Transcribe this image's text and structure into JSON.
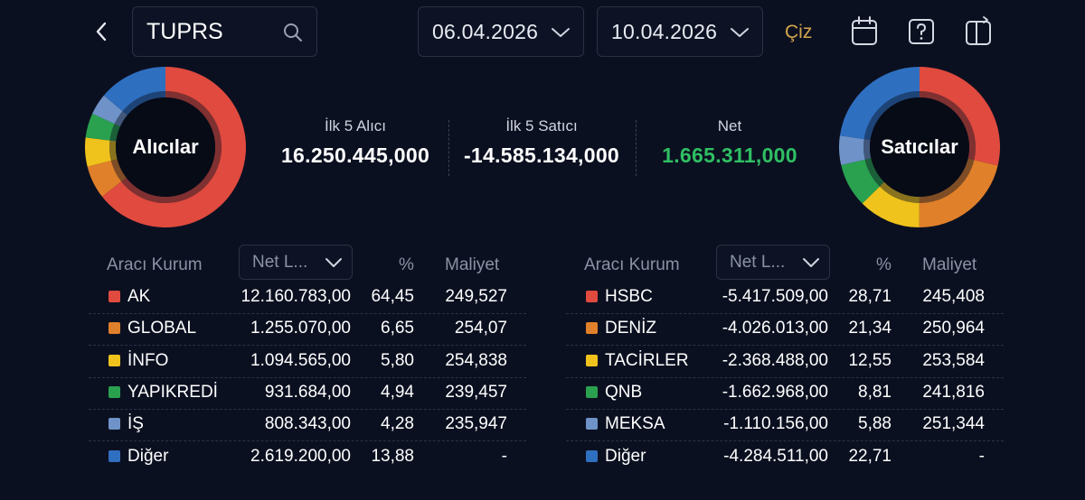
{
  "search": {
    "value": "TUPRS"
  },
  "dates": {
    "start": "06.04.2026",
    "end": "10.04.2026"
  },
  "toolbar": {
    "draw_label": "Çiz"
  },
  "colors": {
    "background": "#0b1020",
    "accent_gold": "#d4a64c",
    "positive_green": "#2fbf63"
  },
  "buyers_donut": {
    "label": "Alıcılar",
    "shares": [
      64.45,
      6.65,
      5.8,
      4.94,
      4.28,
      13.88
    ],
    "colors": [
      "#e04a3f",
      "#e0802a",
      "#f0c31c",
      "#2aa14f",
      "#6f93c8",
      "#2f6fc0"
    ]
  },
  "sellers_donut": {
    "label": "Satıcılar",
    "shares": [
      28.71,
      21.34,
      12.55,
      8.81,
      5.88,
      22.71
    ],
    "colors": [
      "#e04a3f",
      "#e0802a",
      "#f0c31c",
      "#2aa14f",
      "#6f93c8",
      "#2f6fc0"
    ]
  },
  "summary": {
    "buyers_title": "İlk 5 Alıcı",
    "buyers_value": "16.250.445,000",
    "sellers_title": "İlk 5 Satıcı",
    "sellers_value": "-14.585.134,000",
    "net_title": "Net",
    "net_value": "1.665.311,000"
  },
  "buyers_table": {
    "headers": {
      "broker": "Aracı Kurum",
      "sort": "Net L...",
      "pct": "%",
      "cost": "Maliyet"
    },
    "rows": [
      {
        "name": "AK",
        "net": "12.160.783,00",
        "pct": "64,45",
        "cost": "249,527",
        "color": "#e04a3f"
      },
      {
        "name": "GLOBAL",
        "net": "1.255.070,00",
        "pct": "6,65",
        "cost": "254,07",
        "color": "#e0802a"
      },
      {
        "name": "İNFO",
        "net": "1.094.565,00",
        "pct": "5,80",
        "cost": "254,838",
        "color": "#f0c31c"
      },
      {
        "name": "YAPIKREDİ",
        "net": "931.684,00",
        "pct": "4,94",
        "cost": "239,457",
        "color": "#2aa14f"
      },
      {
        "name": "İŞ",
        "net": "808.343,00",
        "pct": "4,28",
        "cost": "235,947",
        "color": "#6f93c8"
      },
      {
        "name": "Diğer",
        "net": "2.619.200,00",
        "pct": "13,88",
        "cost": "-",
        "color": "#2f6fc0"
      }
    ]
  },
  "sellers_table": {
    "headers": {
      "broker": "Aracı Kurum",
      "sort": "Net L...",
      "pct": "%",
      "cost": "Maliyet"
    },
    "rows": [
      {
        "name": "HSBC",
        "net": "-5.417.509,00",
        "pct": "28,71",
        "cost": "245,408",
        "color": "#e04a3f"
      },
      {
        "name": "DENİZ",
        "net": "-4.026.013,00",
        "pct": "21,34",
        "cost": "250,964",
        "color": "#e0802a"
      },
      {
        "name": "TACİRLER",
        "net": "-2.368.488,00",
        "pct": "12,55",
        "cost": "253,584",
        "color": "#f0c31c"
      },
      {
        "name": "QNB",
        "net": "-1.662.968,00",
        "pct": "8,81",
        "cost": "241,816",
        "color": "#2aa14f"
      },
      {
        "name": "MEKSA",
        "net": "-1.110.156,00",
        "pct": "5,88",
        "cost": "251,344",
        "color": "#6f93c8"
      },
      {
        "name": "Diğer",
        "net": "-4.284.511,00",
        "pct": "22,71",
        "cost": "-",
        "color": "#2f6fc0"
      }
    ]
  }
}
